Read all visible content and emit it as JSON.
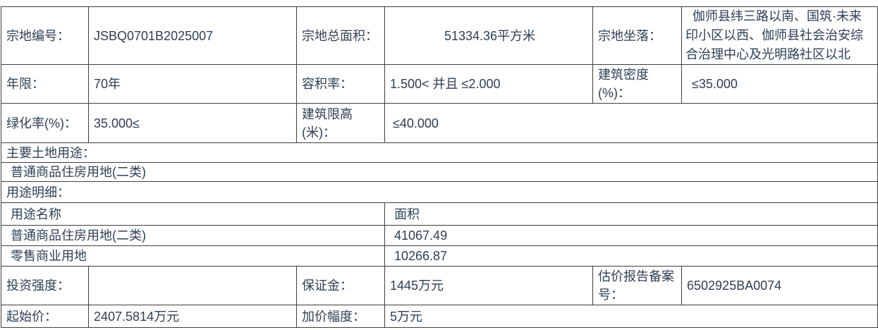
{
  "colors": {
    "text": "#2d3f54",
    "border": "#3e3e3e",
    "background": "#ffffff"
  },
  "table": {
    "r1": {
      "l1": "宗地编号：",
      "v1": "JSBQ0701B2025007",
      "l2": "宗地总面积：",
      "v2": "51334.36平方米",
      "l3": "宗地坐落：",
      "v3": "伽师县纬三路以南、国筑·未来印小区以西、伽师县社会治安综合治理中心及光明路社区以北"
    },
    "r2": {
      "l1": "年限：",
      "v1": "70年",
      "l2": "容积率：",
      "v2": "1.500< 并且 ≤2.000",
      "l3": "建筑密度(%)：",
      "v3": "≤35.000"
    },
    "r3": {
      "l1": "绿化率(%)：",
      "v1": "35.000≤",
      "l2": "建筑限高(米)：",
      "v2": "≤40.000"
    },
    "r4": {
      "title": "主要土地用途："
    },
    "r5": {
      "value": "普通商品住房用地(二类)"
    },
    "r6": {
      "title": "用途明细："
    },
    "r7": {
      "name_header": "用途名称",
      "area_header": "面积"
    },
    "r8": {
      "name": "普通商品住房用地(二类)",
      "area": "41067.49"
    },
    "r9": {
      "name": "零售商业用地",
      "area": "10266.87"
    },
    "r10": {
      "l1": "投资强度：",
      "v1": "",
      "l2": "保证金：",
      "v2": "1445万元",
      "l3": "估价报告备案号：",
      "v3": "6502925BA0074"
    },
    "r11": {
      "l1": "起始价：",
      "v1": "2407.5814万元",
      "l2": "加价幅度：",
      "v2": "5万元"
    }
  }
}
